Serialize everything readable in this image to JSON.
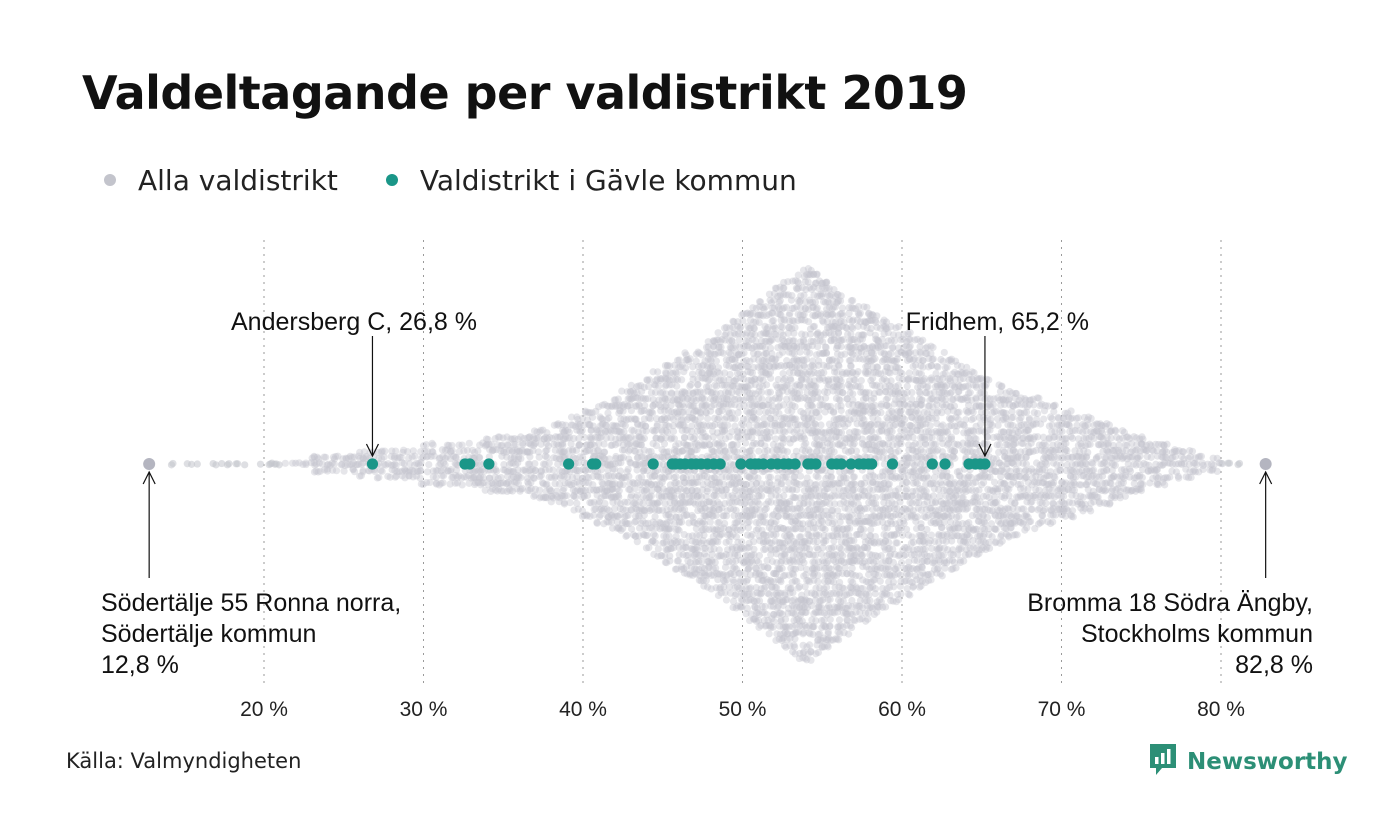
{
  "title": "Valdeltagande per valdistrikt 2019",
  "legend": [
    {
      "label": "Alla valdistrikt",
      "color": "#c3c4cc"
    },
    {
      "label": "Valdistrikt i Gävle kommun",
      "color": "#1a9688"
    }
  ],
  "source": "Källa: Valmyndigheten",
  "brand": {
    "name": "Newsworthy",
    "color": "#2c8f76",
    "icon": "newsworthy-logo-icon"
  },
  "chart_data": {
    "type": "scatter",
    "subtype": "beeswarm",
    "x_unit": "%",
    "xlim": [
      12,
      84
    ],
    "xticks": [
      20,
      30,
      40,
      50,
      60,
      70,
      80
    ],
    "tick_labels": [
      "20 %",
      "30 %",
      "40 %",
      "50 %",
      "60 %",
      "70 %",
      "80 %"
    ],
    "grid": "vertical dotted",
    "all_districts": {
      "color": "#c3c4cc",
      "min": 12.8,
      "max": 82.8,
      "peak": 54
    },
    "gavle_districts": {
      "color": "#1a9688",
      "values": [
        26.8,
        32.6,
        32.9,
        34.1,
        39.1,
        40.6,
        40.8,
        44.4,
        45.6,
        45.8,
        46.1,
        46.4,
        46.8,
        47.1,
        47.4,
        47.8,
        48.2,
        48.6,
        49.9,
        50.5,
        50.8,
        51.0,
        51.3,
        51.8,
        52.2,
        52.6,
        52.9,
        53.3,
        54.1,
        54.3,
        54.6,
        55.6,
        55.9,
        56.2,
        56.8,
        57.3,
        57.6,
        57.9,
        58.1,
        59.4,
        61.9,
        62.7,
        64.2,
        64.6,
        64.9,
        65.2
      ]
    },
    "annotations": [
      {
        "lines": [
          "Andersberg C, 26,8 %"
        ],
        "x": 26.8,
        "align": "left"
      },
      {
        "lines": [
          "Fridhem, 65,2 %"
        ],
        "x": 65.2,
        "align": "right"
      },
      {
        "lines": [
          "Södertälje 55 Ronna norra,",
          "Södertälje kommun",
          "12,8 %"
        ],
        "x": 12.8,
        "align": "left"
      },
      {
        "lines": [
          "Bromma 18 Södra Ängby,",
          "Stockholms kommun",
          "82,8 %"
        ],
        "x": 82.8,
        "align": "right"
      }
    ]
  }
}
